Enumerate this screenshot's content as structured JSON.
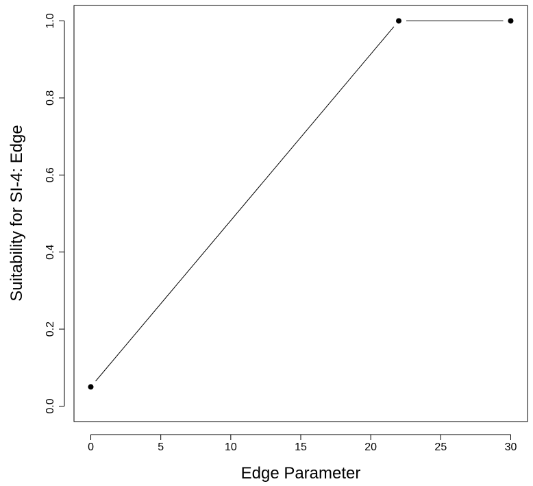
{
  "chart_data": {
    "type": "line",
    "title": "",
    "xlabel": "Edge Parameter",
    "ylabel": "Suitability for SI-4: Edge",
    "xlim": [
      -1.2,
      31.2
    ],
    "ylim": [
      -0.04,
      1.04
    ],
    "xticks": [
      0,
      5,
      10,
      15,
      20,
      25,
      30
    ],
    "xtick_labels": [
      "0",
      "5",
      "10",
      "15",
      "20",
      "25",
      "30"
    ],
    "yticks": [
      0.0,
      0.2,
      0.4,
      0.6,
      0.8,
      1.0
    ],
    "ytick_labels": [
      "0.0",
      "0.2",
      "0.4",
      "0.6",
      "0.8",
      "1.0"
    ],
    "grid": false,
    "series": [
      {
        "type": "line+points",
        "x": [
          0,
          22,
          30
        ],
        "y": [
          0.05,
          1.0,
          1.0
        ],
        "color": "#000000"
      }
    ]
  }
}
